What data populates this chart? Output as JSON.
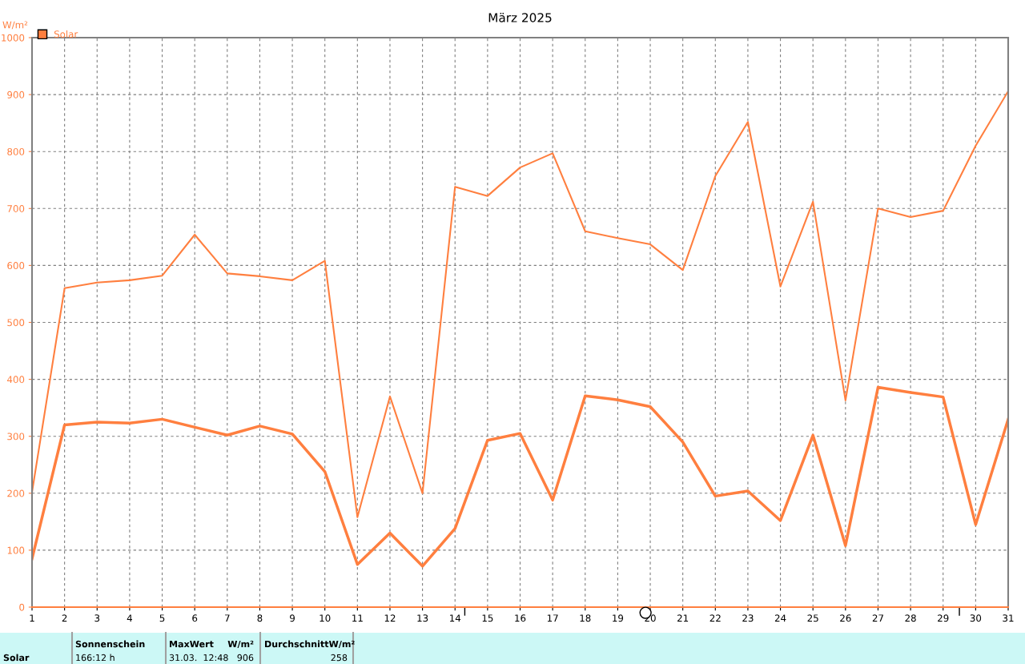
{
  "chart_data": {
    "type": "line",
    "title": "März 2025",
    "ylabel": "W/m²",
    "x": [
      1,
      2,
      3,
      4,
      5,
      6,
      7,
      8,
      9,
      10,
      11,
      12,
      13,
      14,
      15,
      16,
      17,
      18,
      19,
      20,
      21,
      22,
      23,
      24,
      25,
      26,
      27,
      28,
      29,
      30,
      31
    ],
    "series": [
      {
        "name": "Solar",
        "color": "#ff7f3f",
        "values": [
          202,
          560,
          570,
          574,
          582,
          654,
          586,
          581,
          574,
          608,
          158,
          370,
          200,
          738,
          722,
          772,
          797,
          660,
          648,
          637,
          592,
          757,
          852,
          563,
          712,
          363,
          700,
          685,
          696,
          810,
          906
        ]
      },
      {
        "color": "#ff7f3f",
        "values": [
          85,
          320,
          325,
          323,
          330,
          316,
          302,
          318,
          304,
          238,
          75,
          130,
          72,
          138,
          293,
          305,
          188,
          371,
          364,
          352,
          290,
          195,
          204,
          152,
          302,
          108,
          386,
          377,
          369,
          145,
          330
        ]
      }
    ],
    "xlim": [
      1,
      31
    ],
    "xticks": [
      1,
      2,
      3,
      4,
      5,
      6,
      7,
      8,
      9,
      10,
      11,
      12,
      13,
      14,
      15,
      16,
      17,
      18,
      19,
      20,
      21,
      22,
      23,
      24,
      25,
      26,
      27,
      28,
      29,
      30,
      31
    ],
    "ylim": [
      0,
      1000
    ],
    "yticks": [
      0,
      100,
      200,
      300,
      400,
      500,
      600,
      700,
      800,
      900,
      1000
    ],
    "grid": true,
    "legend": "top left",
    "marker": "none",
    "line_style": "solid",
    "annotations": [
      "Solar",
      "Sonnenschein",
      "166:12 h",
      "MaxWert",
      "W/m²",
      "31.03.  12:48",
      "906",
      "DurchschnittW/m²",
      "258"
    ]
  }
}
